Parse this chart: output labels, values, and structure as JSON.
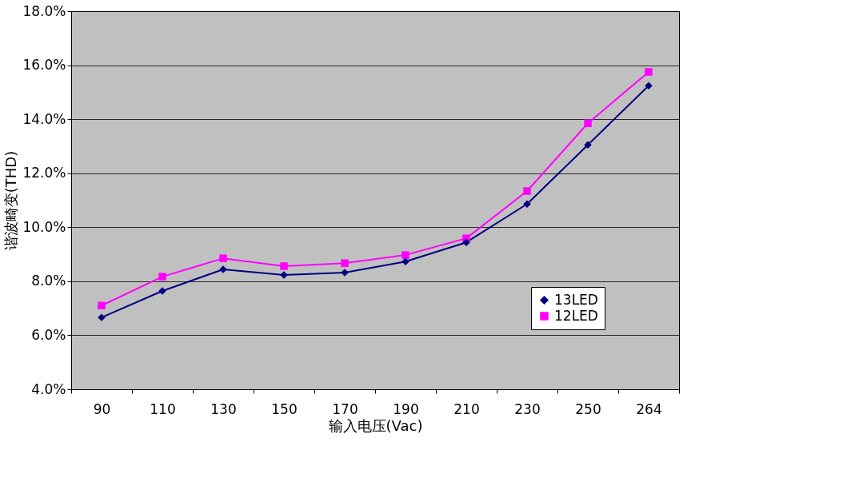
{
  "chart_data": {
    "type": "line",
    "xlabel": "输入电压(Vac)",
    "ylabel": "谐波畸变(THD)",
    "categories": [
      "90",
      "110",
      "130",
      "150",
      "170",
      "190",
      "210",
      "230",
      "250",
      "264"
    ],
    "series": [
      {
        "name": "13LED",
        "color": "#000080",
        "marker": "diamond",
        "values": [
          6.66,
          7.64,
          8.44,
          8.23,
          8.32,
          8.73,
          9.44,
          10.86,
          13.05,
          15.24
        ]
      },
      {
        "name": "12LED",
        "color": "#ff00ff",
        "marker": "square",
        "values": [
          7.1,
          8.17,
          8.85,
          8.56,
          8.67,
          8.97,
          9.59,
          11.34,
          13.85,
          15.75
        ]
      }
    ],
    "ylim": [
      4,
      18
    ],
    "yticks": [
      {
        "value": 4,
        "label": "4.0%"
      },
      {
        "value": 6,
        "label": "6.0%"
      },
      {
        "value": 8,
        "label": "8.0%"
      },
      {
        "value": 10,
        "label": "10.0%"
      },
      {
        "value": 12,
        "label": "12.0%"
      },
      {
        "value": 14,
        "label": "14.0%"
      },
      {
        "value": 16,
        "label": "16.0%"
      },
      {
        "value": 18,
        "label": "18.0%"
      }
    ],
    "grid": "y",
    "legend": "bottom right",
    "line_style": "solid"
  }
}
